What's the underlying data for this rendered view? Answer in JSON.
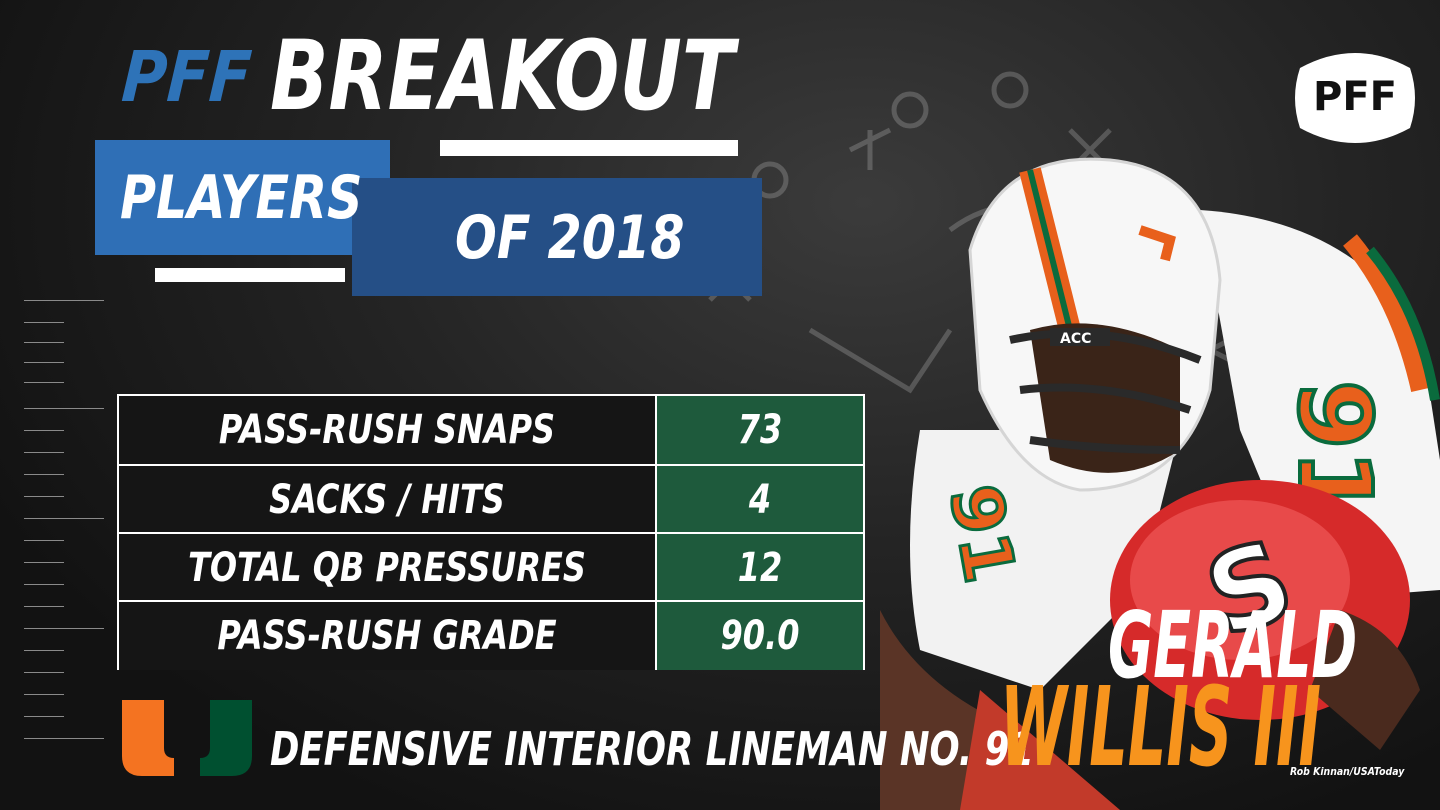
{
  "header": {
    "title_prefix": "PFF",
    "title_main": "BREAKOUT",
    "subtitle_line1": "PLAYERS",
    "subtitle_line2": "OF 2018"
  },
  "logo": {
    "text": "PFF"
  },
  "stats": {
    "rows": [
      {
        "label": "PASS-RUSH SNAPS",
        "value": "73"
      },
      {
        "label": "SACKS / HITS",
        "value": "4"
      },
      {
        "label": "TOTAL QB PRESSURES",
        "value": "12"
      },
      {
        "label": "PASS-RUSH GRADE",
        "value": "90.0"
      }
    ]
  },
  "player": {
    "first_name": "GERALD",
    "last_name": "WILLIS III",
    "position_line": "DEFENSIVE INTERIOR LINEMAN NO. 91",
    "jersey_number": "91",
    "opponent_helmet_text": "S",
    "helmet_conf": "ACC"
  },
  "photo_credit": "Rob Kinnan/USAToday",
  "colors": {
    "pff_blue": "#2e73b8",
    "dark_blue": "#254f86",
    "stat_green": "#1e5a3c",
    "orange": "#f7941d",
    "um_green": "#005030",
    "um_orange": "#f47321"
  }
}
